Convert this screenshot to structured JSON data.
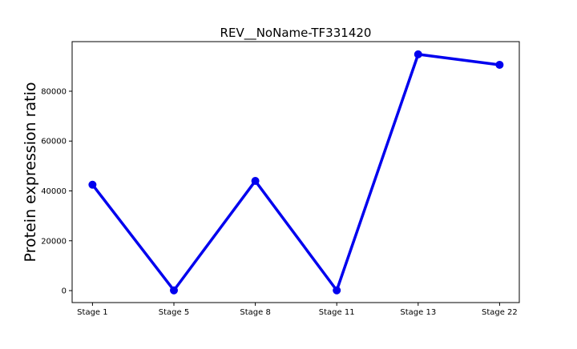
{
  "chart_data": {
    "type": "line",
    "title": "REV__NoName-TF331420",
    "xlabel": "",
    "ylabel": "Protein expression ratio",
    "categories": [
      "Stage 1",
      "Stage 5",
      "Stage 8",
      "Stage 11",
      "Stage 13",
      "Stage 22"
    ],
    "series": [
      {
        "values": [
          42500,
          100,
          44000,
          100,
          94800,
          90600
        ],
        "color": "#0000ee",
        "marker": "circle"
      }
    ],
    "yticks": [
      0,
      20000,
      40000,
      60000,
      80000
    ],
    "ylim": [
      -4800,
      99900
    ],
    "grid": false,
    "legend": "none"
  }
}
